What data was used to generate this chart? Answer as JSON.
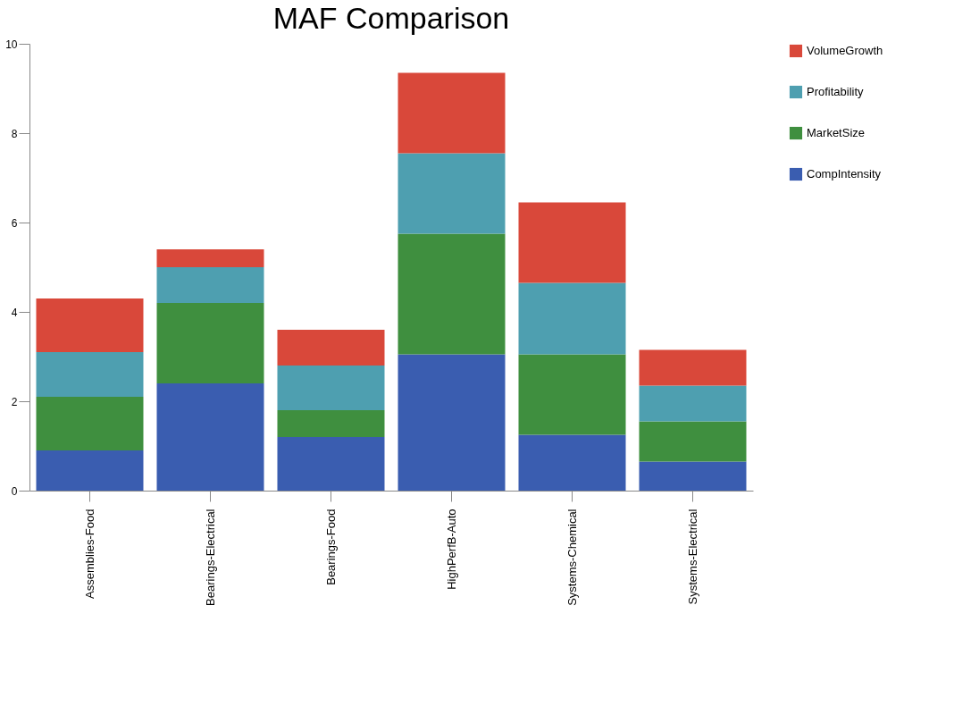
{
  "chart_data": {
    "type": "bar",
    "title": "MAF Comparison",
    "stacked": true,
    "categories": [
      "Assemblies-Food",
      "Bearings-Electrical",
      "Bearings-Food",
      "HighPerfB-Auto",
      "Systems-Chemical",
      "Systems-Electrical"
    ],
    "series": [
      {
        "name": "CompIntensity",
        "color": "#3a5db0",
        "values": [
          0.9,
          2.4,
          1.2,
          3.05,
          1.25,
          0.65
        ]
      },
      {
        "name": "MarketSize",
        "color": "#3f8f3f",
        "values": [
          1.2,
          1.8,
          0.6,
          2.7,
          1.8,
          0.9
        ]
      },
      {
        "name": "Profitability",
        "color": "#4e9fb0",
        "values": [
          1.0,
          0.8,
          1.0,
          1.8,
          1.6,
          0.8
        ]
      },
      {
        "name": "VolumeGrowth",
        "color": "#d9483a",
        "values": [
          1.2,
          0.4,
          0.8,
          1.8,
          1.8,
          0.8
        ]
      }
    ],
    "ylim": [
      0,
      10
    ],
    "yticks": [
      0,
      2,
      4,
      6,
      8,
      10
    ],
    "grid": false,
    "legend": "right"
  }
}
